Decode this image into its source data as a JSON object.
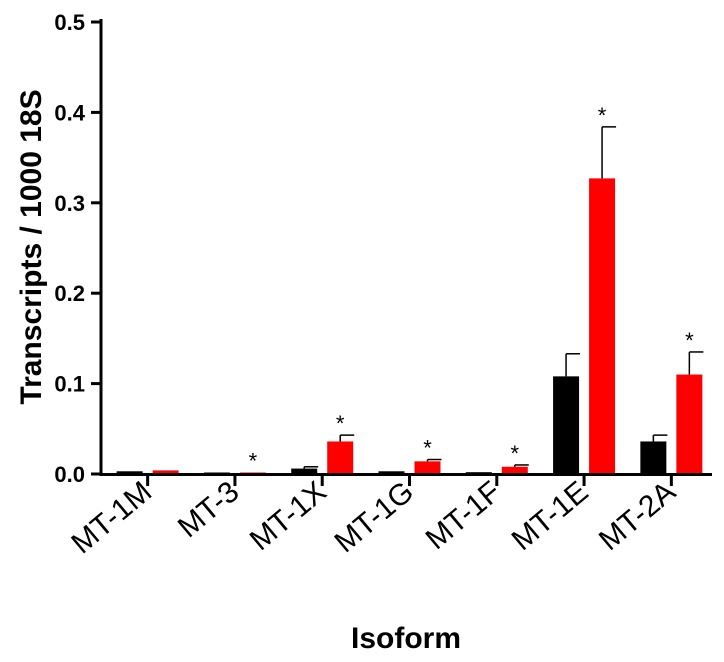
{
  "chart_data": {
    "type": "bar",
    "xlabel": "Isoform",
    "ylabel": "Transcripts / 1000 18S",
    "ylim": [
      0,
      0.5
    ],
    "yticks": [
      "0.0",
      "0.1",
      "0.2",
      "0.3",
      "0.4",
      "0.5"
    ],
    "grid": false,
    "legend": "none",
    "categories": [
      "MT-1M",
      "MT-3",
      "MT-1X",
      "MT-1G",
      "MT-1F",
      "MT-1E",
      "MT-2A"
    ],
    "series": [
      {
        "color": "#000000",
        "values": [
          0.003,
          0.001,
          0.006,
          0.003,
          0.002,
          0.108,
          0.036
        ],
        "errors": [
          0.0005,
          0.0003,
          0.002,
          0.0005,
          0.0005,
          0.025,
          0.007
        ]
      },
      {
        "color": "#ff0000",
        "values": [
          0.004,
          0.001,
          0.036,
          0.014,
          0.008,
          0.327,
          0.11
        ],
        "errors": [
          0.0005,
          0.0005,
          0.007,
          0.002,
          0.002,
          0.057,
          0.025
        ]
      }
    ],
    "significance": [
      "",
      "*",
      "*",
      "*",
      "*",
      "*",
      "*"
    ]
  }
}
